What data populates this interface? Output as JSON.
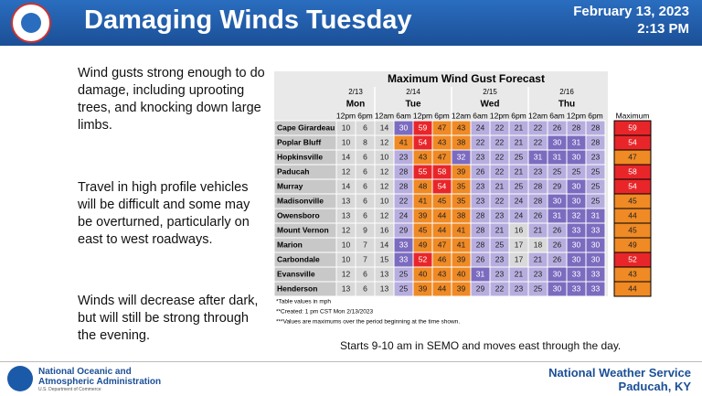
{
  "header": {
    "title": "Damaging Winds Tuesday",
    "date": "February 13, 2023",
    "time": "2:13 PM"
  },
  "body": {
    "paragraphs": [
      "Wind gusts strong enough to do damage, including uprooting trees, and knocking down large limbs.",
      "Travel in high profile vehicles will be difficult and some may be overturned, particularly on east to west roadways.",
      "Winds will decrease after dark, but will still be strong through the evening."
    ]
  },
  "table": {
    "title": "Maximum Wind Gust Forecast",
    "dates": [
      {
        "date": "2/13",
        "day": "Mon"
      },
      {
        "date": "2/14",
        "day": "Tue"
      },
      {
        "date": "2/15",
        "day": "Wed"
      },
      {
        "date": "2/16",
        "day": "Thu"
      }
    ],
    "times": [
      "12pm",
      "6pm",
      "12am",
      "6am",
      "12pm",
      "6pm",
      "12am",
      "6am",
      "12pm",
      "6pm",
      "12am",
      "6am",
      "12pm",
      "6pm"
    ],
    "max_header": "Maximum",
    "rows": [
      {
        "station": "Cape Girardeau",
        "values": [
          10,
          6,
          14,
          30,
          59,
          47,
          43,
          24,
          22,
          21,
          22,
          26,
          28,
          28
        ],
        "max": 59
      },
      {
        "station": "Poplar Bluff",
        "values": [
          10,
          8,
          12,
          41,
          54,
          43,
          38,
          22,
          22,
          21,
          22,
          30,
          31,
          28
        ],
        "max": 54
      },
      {
        "station": "Hopkinsville",
        "values": [
          14,
          6,
          10,
          23,
          43,
          47,
          32,
          23,
          22,
          25,
          31,
          31,
          30,
          23
        ],
        "max": 47
      },
      {
        "station": "Paducah",
        "values": [
          12,
          6,
          12,
          28,
          55,
          58,
          39,
          26,
          22,
          21,
          23,
          25,
          25,
          25
        ],
        "max": 58
      },
      {
        "station": "Murray",
        "values": [
          14,
          6,
          12,
          28,
          48,
          54,
          35,
          23,
          21,
          25,
          28,
          29,
          30,
          25
        ],
        "max": 54
      },
      {
        "station": "Madisonville",
        "values": [
          13,
          6,
          10,
          22,
          41,
          45,
          35,
          23,
          22,
          24,
          28,
          30,
          30,
          25
        ],
        "max": 45
      },
      {
        "station": "Owensboro",
        "values": [
          13,
          6,
          12,
          24,
          39,
          44,
          38,
          28,
          23,
          24,
          26,
          31,
          32,
          31
        ],
        "max": 44
      },
      {
        "station": "Mount Vernon",
        "values": [
          12,
          9,
          16,
          29,
          45,
          44,
          41,
          28,
          21,
          16,
          21,
          26,
          33,
          33
        ],
        "max": 45
      },
      {
        "station": "Marion",
        "values": [
          10,
          7,
          14,
          33,
          49,
          47,
          41,
          28,
          25,
          17,
          18,
          26,
          30,
          30
        ],
        "max": 49
      },
      {
        "station": "Carbondale",
        "values": [
          10,
          7,
          15,
          33,
          52,
          46,
          39,
          26,
          23,
          17,
          21,
          26,
          30,
          30
        ],
        "max": 52
      },
      {
        "station": "Evansville",
        "values": [
          12,
          6,
          13,
          25,
          40,
          43,
          40,
          31,
          23,
          21,
          23,
          30,
          33,
          33
        ],
        "max": 43
      },
      {
        "station": "Henderson",
        "values": [
          13,
          6,
          13,
          25,
          39,
          44,
          39,
          29,
          22,
          23,
          25,
          30,
          33,
          33
        ],
        "max": 44
      }
    ],
    "notes": [
      "*Table values in mph",
      "**Created: 1 pm CST Mon 2/13/2023",
      "***Values are maximums over the period beginning at the time shown."
    ]
  },
  "caption": "Starts 9-10 am in SEMO and moves east through the day.",
  "footer": {
    "org_line1": "National Oceanic and",
    "org_line2": "Atmospheric Administration",
    "org_sub": "U.S. Department of Commerce",
    "office": "National Weather Service",
    "location": "Paducah, KY"
  }
}
